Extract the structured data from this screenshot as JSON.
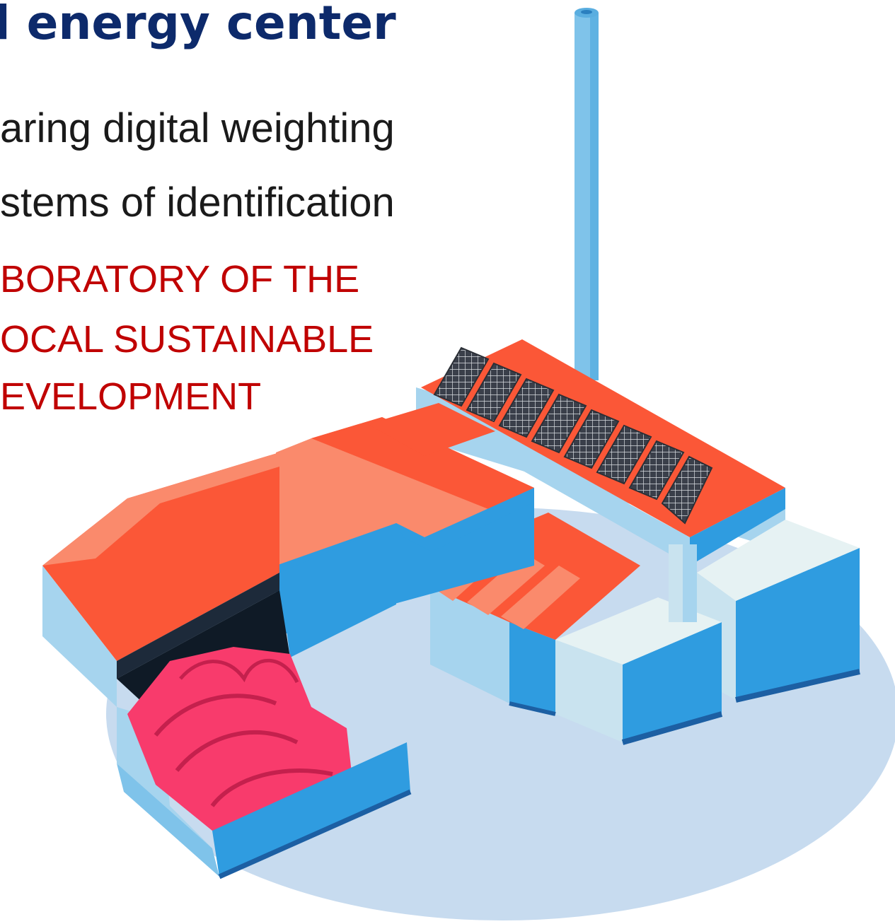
{
  "slide": {
    "title": "l energy center",
    "bullets": [
      "aring digital weighting",
      "stems of identification"
    ],
    "highlight_lines": [
      "BORATORY OF THE",
      "OCAL SUSTAINABLE",
      "EVELOPMENT"
    ]
  },
  "illustration": {
    "subject": "factory-energy-center",
    "solar_panel_count": 8,
    "colors": {
      "ground": "#c7dbef",
      "wall_blue": "#2f9ce0",
      "wall_light": "#a6d4ee",
      "roof_dark": "#fb5737",
      "roof_light": "#fa8a6c",
      "white_block": "#e6f2f3",
      "chimney": "#7fc3ea",
      "waste_pink": "#f83b6c",
      "panel": "#3a3f4a"
    }
  }
}
